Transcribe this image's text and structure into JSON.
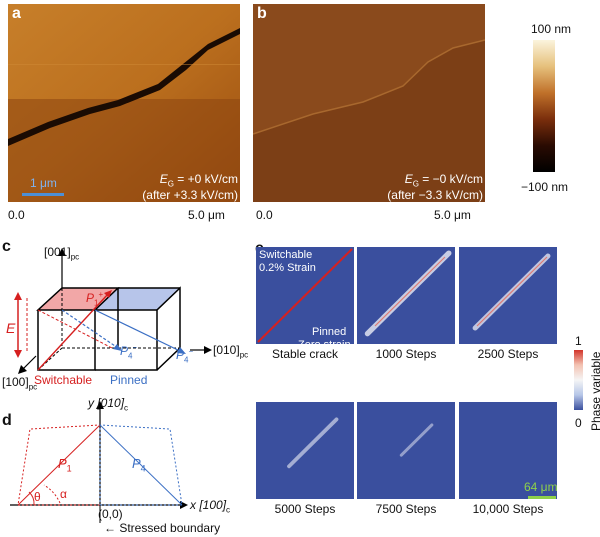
{
  "panels": {
    "a": {
      "label": "a",
      "scalebar": "1 μm",
      "field": "E",
      "field_sub": "G",
      "field_value": " = +0 kV/cm",
      "field_note": "(after +3.3 kV/cm)",
      "x_start": "0.0",
      "x_end": "5.0 μm"
    },
    "b": {
      "label": "b",
      "field": "E",
      "field_sub": "G",
      "field_value": " = −0 kV/cm",
      "field_note": "(after −3.3 kV/cm)",
      "x_start": "0.0",
      "x_end": "5.0 μm"
    },
    "colorbar": {
      "top": "100 nm",
      "bottom": "−100 nm"
    },
    "c": {
      "label": "c",
      "axis_z": "[001]",
      "axis_z_sub": "pc",
      "axis_y": "[010]",
      "axis_y_sub": "pc",
      "axis_x": "[100]",
      "axis_x_sub": "pc",
      "field_label": "E",
      "p1": "P",
      "p1_sub": "1",
      "p1_sup": "+",
      "p4a": "P",
      "p4a_sub": "4",
      "p4a_sup": "−",
      "p4b": "P",
      "p4b_sub": "4",
      "p4b_sup": "−",
      "switchable": "Switchable",
      "pinned": "Pinned"
    },
    "d": {
      "label": "d",
      "axis_y": "y [010]",
      "axis_y_sub": "c",
      "axis_x": "x [100]",
      "axis_x_sub": "c",
      "origin": "(0,0)",
      "p1": "P",
      "p1_sub": "1",
      "p4": "P",
      "p4_sub": "4",
      "theta": "θ",
      "alpha": "α",
      "boundary": "← Stressed boundary"
    },
    "e": {
      "label": "e",
      "switchable_note": "Switchable",
      "strain_note": "0.2% Strain",
      "pinned_note": "Pinned",
      "zero_note": "Zero strain",
      "frames": [
        {
          "caption": "Stable crack",
          "intensity": 1.0
        },
        {
          "caption": "1000 Steps",
          "intensity": 0.85
        },
        {
          "caption": "2500 Steps",
          "intensity": 0.75
        },
        {
          "caption": "5000 Steps",
          "intensity": 0.45
        },
        {
          "caption": "7500 Steps",
          "intensity": 0.25
        },
        {
          "caption": "10,000 Steps",
          "intensity": 0.0
        }
      ],
      "scalebar": "64 μm",
      "colorbar_top": "1",
      "colorbar_bottom": "0",
      "colorbar_title": "Phase variable"
    }
  },
  "colors": {
    "switchable": "#d62020",
    "pinned": "#3b6fc4",
    "sim_background": "#3a4f9e",
    "scalebar_green": "#8ed14a",
    "scalebar_blue": "#4c8fd6"
  }
}
